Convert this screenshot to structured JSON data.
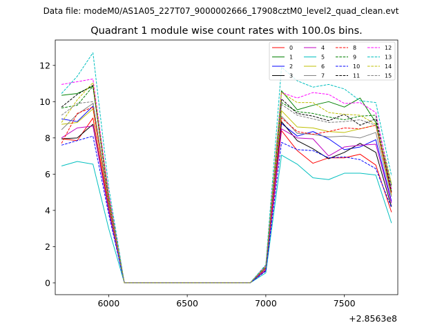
{
  "suptitle": "Data file: modeM0/AS1A05_227T07_9000002666_17908cztM0_level2_quad_clean.evt",
  "chart_data": {
    "type": "line",
    "title": "Quadrant 1 module wise count rates with 100.0s bins.",
    "xlabel": "",
    "ylabel": "",
    "x_offset_text": "+2.8563e8",
    "xlim": [
      5660,
      7840
    ],
    "ylim": [
      -0.65,
      13.4
    ],
    "x_ticks": [
      6000,
      6500,
      7000,
      7500
    ],
    "y_ticks": [
      0,
      2,
      4,
      6,
      8,
      10,
      12
    ],
    "grid": false,
    "legend_position": "top-right",
    "legend_columns": 4,
    "x": [
      5700,
      5800,
      5900,
      6000,
      6100,
      6200,
      6300,
      6400,
      6500,
      6600,
      6700,
      6800,
      6900,
      7000,
      7100,
      7200,
      7300,
      7400,
      7500,
      7600,
      7700,
      7800
    ],
    "series": [
      {
        "name": "0",
        "color": "#ff0000",
        "dash": false,
        "values": [
          7.95,
          7.85,
          9.1,
          4.1,
          0,
          0,
          0,
          0,
          0,
          0,
          0,
          0,
          0,
          0.7,
          8.4,
          7.3,
          6.6,
          6.9,
          6.9,
          7.1,
          6.5,
          3.9
        ]
      },
      {
        "name": "1",
        "color": "#008000",
        "dash": false,
        "values": [
          10.35,
          10.45,
          10.85,
          4.8,
          0,
          0,
          0,
          0,
          0,
          0,
          0,
          0,
          0,
          0.95,
          10.6,
          9.55,
          9.8,
          10.0,
          9.7,
          10.2,
          8.85,
          5.0
        ]
      },
      {
        "name": "2",
        "color": "#0000ff",
        "dash": false,
        "values": [
          9.05,
          8.9,
          9.75,
          4.3,
          0,
          0,
          0,
          0,
          0,
          0,
          0,
          0,
          0,
          0.8,
          8.8,
          8.1,
          8.35,
          7.95,
          7.35,
          7.5,
          7.9,
          4.5
        ]
      },
      {
        "name": "3",
        "color": "#000000",
        "dash": false,
        "values": [
          7.95,
          8.0,
          8.75,
          4.0,
          0,
          0,
          0,
          0,
          0,
          0,
          0,
          0,
          0,
          0.7,
          8.9,
          7.85,
          7.4,
          6.85,
          7.2,
          7.7,
          7.2,
          4.2
        ]
      },
      {
        "name": "4",
        "color": "#bf00bf",
        "dash": false,
        "values": [
          8.0,
          8.55,
          8.65,
          4.0,
          0,
          0,
          0,
          0,
          0,
          0,
          0,
          0,
          0,
          0.72,
          8.5,
          8.0,
          7.95,
          7.0,
          7.5,
          7.6,
          7.65,
          4.4
        ]
      },
      {
        "name": "5",
        "color": "#00bfbf",
        "dash": false,
        "values": [
          6.45,
          6.7,
          6.55,
          3.0,
          0,
          0,
          0,
          0,
          0,
          0,
          0,
          0,
          0,
          0.55,
          7.05,
          6.55,
          5.8,
          5.7,
          6.05,
          6.05,
          5.95,
          3.3
        ]
      },
      {
        "name": "6",
        "color": "#bfbf00",
        "dash": false,
        "values": [
          8.75,
          8.85,
          9.6,
          4.3,
          0,
          0,
          0,
          0,
          0,
          0,
          0,
          0,
          0,
          0.8,
          9.5,
          8.6,
          8.55,
          8.35,
          8.3,
          8.5,
          8.7,
          4.85
        ]
      },
      {
        "name": "7",
        "color": "#808080",
        "dash": false,
        "values": [
          8.45,
          9.3,
          9.9,
          4.4,
          0,
          0,
          0,
          0,
          0,
          0,
          0,
          0,
          0,
          0.8,
          9.2,
          8.25,
          8.2,
          8.05,
          8.1,
          8.0,
          8.3,
          4.75
        ]
      },
      {
        "name": "8",
        "color": "#ff0000",
        "dash": true,
        "values": [
          7.7,
          9.35,
          9.7,
          4.4,
          0,
          0,
          0,
          0,
          0,
          0,
          0,
          0,
          0,
          0.8,
          9.1,
          8.35,
          8.2,
          8.35,
          8.55,
          8.5,
          8.7,
          4.95
        ]
      },
      {
        "name": "9",
        "color": "#008000",
        "dash": true,
        "values": [
          9.65,
          9.8,
          10.85,
          4.85,
          0,
          0,
          0,
          0,
          0,
          0,
          0,
          0,
          0,
          0.9,
          9.95,
          9.45,
          9.35,
          9.15,
          9.0,
          9.2,
          9.25,
          5.4
        ]
      },
      {
        "name": "10",
        "color": "#0000ff",
        "dash": true,
        "values": [
          7.6,
          7.85,
          8.1,
          3.8,
          0,
          0,
          0,
          0,
          0,
          0,
          0,
          0,
          0,
          0.65,
          7.75,
          7.35,
          7.3,
          6.9,
          6.95,
          6.8,
          6.3,
          4.15
        ]
      },
      {
        "name": "11",
        "color": "#000000",
        "dash": true,
        "values": [
          9.7,
          10.4,
          10.9,
          4.6,
          0,
          0,
          0,
          0,
          0,
          0,
          0,
          0,
          0,
          0.85,
          10.15,
          9.35,
          9.2,
          8.95,
          9.3,
          8.7,
          9.05,
          5.05
        ]
      },
      {
        "name": "12",
        "color": "#ff00ff",
        "dash": true,
        "values": [
          10.95,
          11.1,
          11.25,
          4.95,
          0,
          0,
          0,
          0,
          0,
          0,
          0,
          0,
          0,
          0.95,
          10.5,
          10.2,
          10.5,
          10.4,
          9.9,
          9.95,
          9.4,
          5.2
        ]
      },
      {
        "name": "13",
        "color": "#00bfbf",
        "dash": true,
        "values": [
          10.45,
          11.4,
          12.7,
          5.3,
          0,
          0,
          0,
          0,
          0,
          0,
          0,
          0,
          0,
          1.0,
          11.9,
          11.15,
          10.8,
          10.95,
          10.7,
          10.05,
          9.95,
          5.9
        ]
      },
      {
        "name": "14",
        "color": "#bfbf00",
        "dash": true,
        "values": [
          8.85,
          10.1,
          11.05,
          4.75,
          0,
          0,
          0,
          0,
          0,
          0,
          0,
          0,
          0,
          0.9,
          10.5,
          9.95,
          9.95,
          9.4,
          9.3,
          9.25,
          8.75,
          5.5
        ]
      },
      {
        "name": "15",
        "color": "#808080",
        "dash": true,
        "values": [
          9.25,
          9.9,
          10.0,
          4.5,
          0,
          0,
          0,
          0,
          0,
          0,
          0,
          0,
          0,
          0.85,
          9.85,
          9.25,
          9.05,
          8.85,
          8.9,
          9.0,
          8.7,
          5.3
        ]
      }
    ]
  }
}
